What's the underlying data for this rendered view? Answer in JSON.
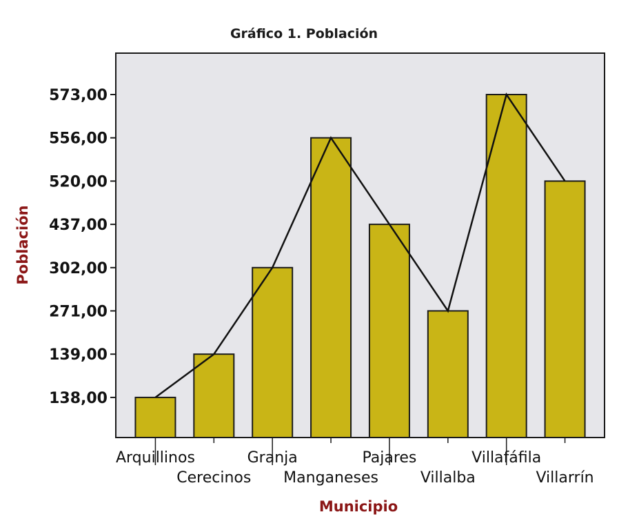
{
  "chart_data": {
    "type": "bar",
    "title": "Gráfico 1. Población",
    "xlabel": "Municipio",
    "ylabel": "Población",
    "categories": [
      "Arquillinos",
      "Cerecinos",
      "Granja",
      "Manganeses",
      "Pajares",
      "Villalba",
      "Villafáfila",
      "Villarrín"
    ],
    "values": [
      138,
      139,
      302,
      556,
      437,
      271,
      573,
      520
    ],
    "y_tick_labels": [
      "138,00",
      "139,00",
      "271,00",
      "302,00",
      "437,00",
      "520,00",
      "556,00",
      "573,00"
    ],
    "overlay_line": true,
    "grid": false,
    "bar_color": "#c9b516",
    "plot_background": "#e6e6ea",
    "axis_label_color": "#8b1616"
  }
}
